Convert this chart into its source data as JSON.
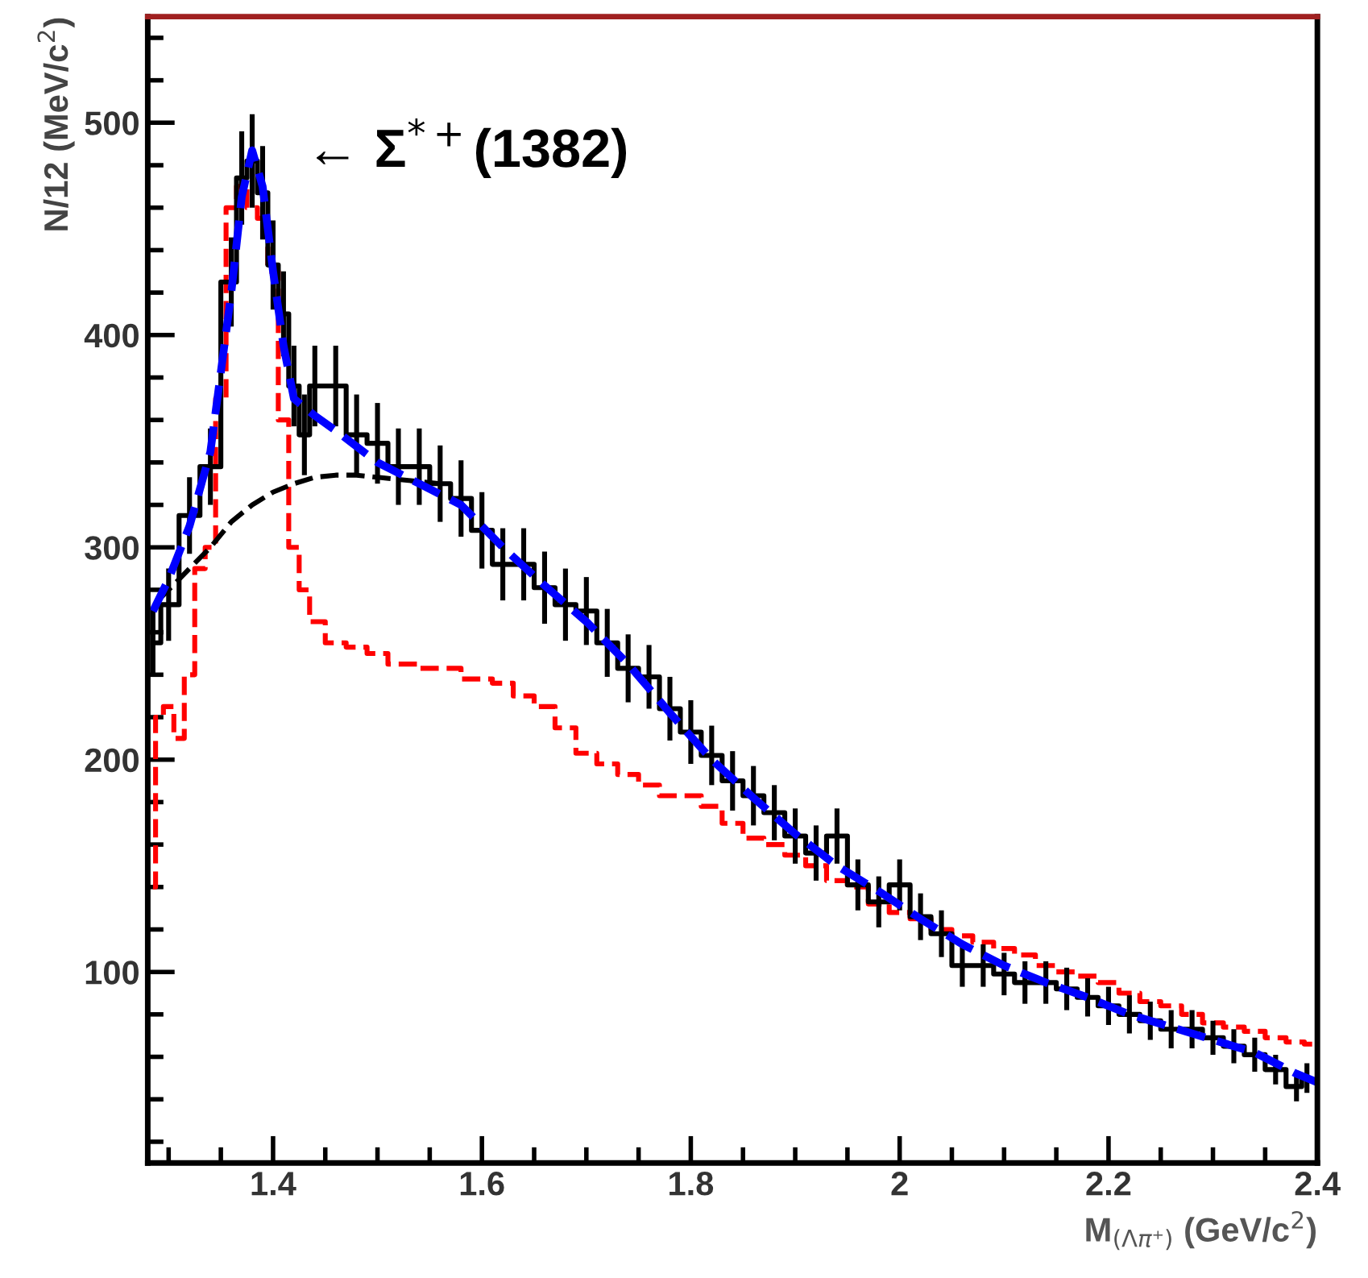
{
  "chart_data": {
    "type": "line",
    "xlabel": "M$_{(Λπ⁺)}$ (GeV/c$^{2}$)",
    "ylabel": "N/12 (MeV/c$^{2}$)",
    "xlim": [
      1.28,
      2.4
    ],
    "ylim": [
      10,
      550
    ],
    "xticks": [
      1.4,
      1.6,
      1.8,
      2,
      2.2,
      2.4
    ],
    "yticks": [
      100,
      200,
      300,
      400,
      500
    ],
    "grid": false,
    "legend": false,
    "marker": "none",
    "annotations": [
      "← Σ$^{*+}$(1382)"
    ],
    "series": [
      {
        "type": "step",
        "color": "#ff0000",
        "line_style": "dashed",
        "x": [
          1.285,
          1.29,
          1.3,
          1.31,
          1.32,
          1.33,
          1.34,
          1.35,
          1.36,
          1.37,
          1.38,
          1.39,
          1.4,
          1.41,
          1.42,
          1.43,
          1.44,
          1.46,
          1.48,
          1.5,
          1.52,
          1.56,
          1.6,
          1.62,
          1.64,
          1.66,
          1.68,
          1.7,
          1.72,
          1.74,
          1.76,
          1.78,
          1.8,
          1.82,
          1.84,
          1.86,
          1.88,
          1.9,
          1.92,
          1.94,
          1.96,
          1.98,
          2.0,
          2.02,
          2.04,
          2.06,
          2.08,
          2.1,
          2.12,
          2.14,
          2.16,
          2.18,
          2.2,
          2.22,
          2.24,
          2.26,
          2.28,
          2.3,
          2.32,
          2.34,
          2.36,
          2.38,
          2.395
        ],
        "values": [
          140,
          220,
          225,
          210,
          240,
          290,
          300,
          370,
          460,
          470,
          460,
          455,
          430,
          360,
          300,
          280,
          265,
          255,
          253,
          250,
          245,
          243,
          238,
          236,
          230,
          225,
          215,
          203,
          198,
          193,
          188,
          183,
          183,
          178,
          170,
          163,
          160,
          155,
          150,
          143,
          140,
          132,
          128,
          125,
          120,
          117,
          114,
          111,
          108,
          103,
          100,
          98,
          95,
          90,
          86,
          84,
          80,
          76,
          74,
          72,
          69,
          67,
          66
        ]
      },
      {
        "color": "#000000",
        "line_style": "dashed",
        "x": [
          1.29,
          1.3,
          1.32,
          1.34,
          1.36,
          1.38,
          1.4,
          1.42,
          1.44,
          1.46,
          1.48,
          1.5,
          1.52,
          1.54,
          1.56
        ],
        "values": [
          275,
          280,
          290,
          300,
          312,
          320,
          326,
          330,
          333,
          334,
          334,
          333,
          332,
          331,
          330
        ]
      },
      {
        "type": "step",
        "color": "#000000",
        "line_style": "solid",
        "x": [
          1.285,
          1.3,
          1.32,
          1.34,
          1.36,
          1.37,
          1.38,
          1.39,
          1.4,
          1.41,
          1.42,
          1.43,
          1.44,
          1.46,
          1.48,
          1.5,
          1.52,
          1.54,
          1.56,
          1.58,
          1.6,
          1.62,
          1.64,
          1.66,
          1.68,
          1.7,
          1.72,
          1.74,
          1.76,
          1.78,
          1.8,
          1.82,
          1.84,
          1.86,
          1.88,
          1.9,
          1.92,
          1.94,
          1.96,
          1.98,
          2.0,
          2.02,
          2.04,
          2.06,
          2.08,
          2.1,
          2.12,
          2.14,
          2.16,
          2.18,
          2.2,
          2.22,
          2.24,
          2.26,
          2.28,
          2.3,
          2.32,
          2.34,
          2.36,
          2.38,
          2.39
        ],
        "values": [
          255,
          273,
          315,
          338,
          425,
          474,
          482,
          467,
          433,
          410,
          376,
          353,
          376,
          376,
          353,
          349,
          338,
          338,
          330,
          323,
          308,
          292,
          292,
          281,
          273,
          270,
          255,
          243,
          239,
          224,
          213,
          202,
          190,
          183,
          175,
          164,
          156,
          164,
          141,
          133,
          141,
          126,
          118,
          103,
          103,
          99,
          95,
          95,
          92,
          88,
          84,
          80,
          77,
          73,
          73,
          69,
          65,
          61,
          54,
          46,
          50
        ],
        "errors": [
          16,
          17,
          18,
          18,
          21,
          22,
          22,
          22,
          21,
          20,
          19,
          19,
          19,
          19,
          19,
          19,
          18,
          18,
          18,
          18,
          18,
          17,
          17,
          17,
          17,
          16,
          16,
          16,
          15,
          15,
          15,
          14,
          14,
          14,
          13,
          13,
          13,
          13,
          12,
          12,
          12,
          11,
          11,
          10,
          10,
          10,
          10,
          10,
          10,
          9,
          9,
          9,
          9,
          9,
          9,
          8,
          8,
          8,
          7,
          7,
          7
        ]
      },
      {
        "color": "#0000ff",
        "line_style": "dashed",
        "x": [
          1.285,
          1.3,
          1.32,
          1.34,
          1.36,
          1.37,
          1.38,
          1.39,
          1.4,
          1.41,
          1.42,
          1.44,
          1.46,
          1.5,
          1.54,
          1.58,
          1.62,
          1.66,
          1.7,
          1.74,
          1.78,
          1.82,
          1.86,
          1.9,
          1.94,
          1.98,
          2.02,
          2.06,
          2.1,
          2.14,
          2.18,
          2.22,
          2.26,
          2.3,
          2.34,
          2.38,
          2.4
        ],
        "values": [
          270,
          285,
          310,
          345,
          420,
          465,
          487,
          470,
          430,
          395,
          370,
          362,
          355,
          340,
          330,
          320,
          300,
          282,
          265,
          245,
          222,
          200,
          182,
          165,
          150,
          138,
          125,
          113,
          103,
          95,
          88,
          80,
          74,
          68,
          62,
          52,
          48
        ]
      }
    ]
  }
}
